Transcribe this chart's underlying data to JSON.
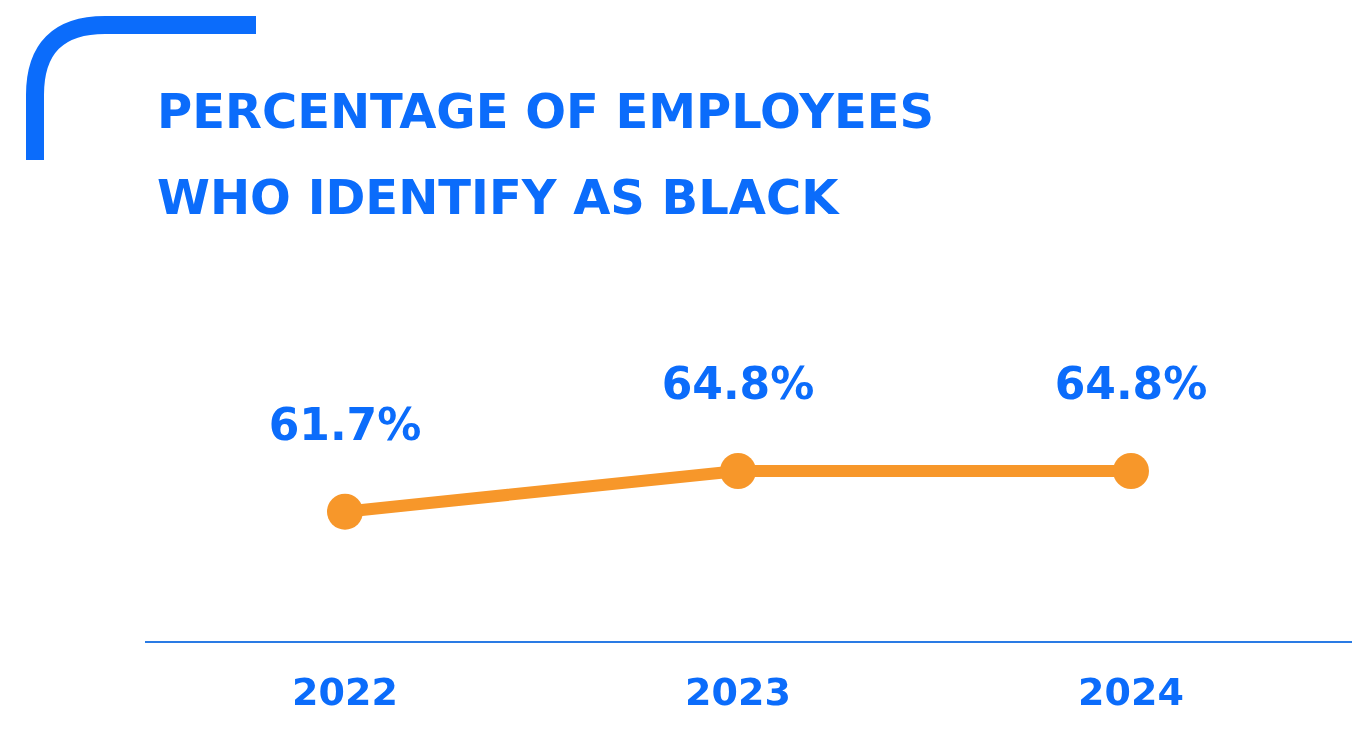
{
  "chart_data": {
    "type": "line",
    "title": "PERCENTAGE OF EMPLOYEES WHO IDENTIFY AS BLACK",
    "categories": [
      "2022",
      "2023",
      "2024"
    ],
    "series": [
      {
        "color": "#f7972a",
        "values": [
          61.7,
          64.8,
          64.8
        ],
        "value_labels": [
          "61.7%",
          "64.8%",
          "64.8%"
        ]
      }
    ],
    "marker": "circle",
    "line_style": "solid"
  }
}
